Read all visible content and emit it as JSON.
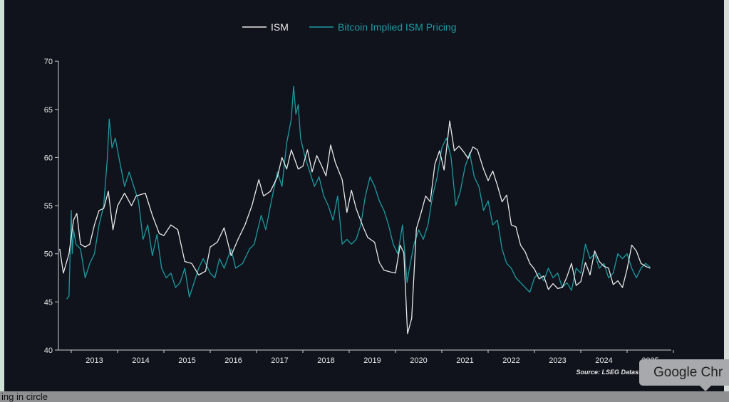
{
  "chart_data": {
    "type": "line",
    "title": "",
    "xlabel": "",
    "ylabel": "",
    "ylim": [
      40,
      70
    ],
    "xlim": [
      2012.7,
      2026.0
    ],
    "yticks": [
      "40",
      "45",
      "50",
      "55",
      "60",
      "65",
      "70"
    ],
    "xticks": [
      "2013",
      "2014",
      "2015",
      "2016",
      "2017",
      "2018",
      "2019",
      "2020",
      "2021",
      "2022",
      "2023",
      "2024",
      "2025"
    ],
    "legend_placement": "top-center",
    "grid": false,
    "source": "Source: LSEG Datastream - Re",
    "series": [
      {
        "name": "ISM",
        "color": "#e8e8e8",
        "points": [
          [
            2012.75,
            50.5
          ],
          [
            2012.83,
            48
          ],
          [
            2012.95,
            50
          ],
          [
            2013.05,
            53.5
          ],
          [
            2013.12,
            54.2
          ],
          [
            2013.2,
            51
          ],
          [
            2013.3,
            50.7
          ],
          [
            2013.4,
            51
          ],
          [
            2013.5,
            53
          ],
          [
            2013.6,
            54.5
          ],
          [
            2013.7,
            54.7
          ],
          [
            2013.8,
            56.5
          ],
          [
            2013.9,
            52.5
          ],
          [
            2014.0,
            55
          ],
          [
            2014.15,
            56.3
          ],
          [
            2014.3,
            55
          ],
          [
            2014.4,
            56
          ],
          [
            2014.6,
            56.3
          ],
          [
            2014.75,
            54
          ],
          [
            2014.9,
            52.1
          ],
          [
            2015.0,
            51.9
          ],
          [
            2015.15,
            53
          ],
          [
            2015.3,
            52.5
          ],
          [
            2015.45,
            49.2
          ],
          [
            2015.6,
            49
          ],
          [
            2015.75,
            47.8
          ],
          [
            2015.9,
            48.2
          ],
          [
            2016.0,
            50.7
          ],
          [
            2016.15,
            51.2
          ],
          [
            2016.3,
            52.7
          ],
          [
            2016.45,
            49.8
          ],
          [
            2016.6,
            51.5
          ],
          [
            2016.75,
            53
          ],
          [
            2016.9,
            55
          ],
          [
            2017.05,
            57.7
          ],
          [
            2017.15,
            56
          ],
          [
            2017.3,
            56.5
          ],
          [
            2017.45,
            58
          ],
          [
            2017.55,
            60
          ],
          [
            2017.65,
            58.8
          ],
          [
            2017.75,
            60.8
          ],
          [
            2017.9,
            58.8
          ],
          [
            2018.0,
            59.1
          ],
          [
            2018.1,
            60.8
          ],
          [
            2018.2,
            58.5
          ],
          [
            2018.3,
            60.2
          ],
          [
            2018.4,
            59.2
          ],
          [
            2018.5,
            58.1
          ],
          [
            2018.6,
            61.3
          ],
          [
            2018.7,
            59.5
          ],
          [
            2018.85,
            57.7
          ],
          [
            2018.95,
            54.3
          ],
          [
            2019.05,
            56.6
          ],
          [
            2019.15,
            54.7
          ],
          [
            2019.3,
            52.8
          ],
          [
            2019.4,
            51.7
          ],
          [
            2019.55,
            51.2
          ],
          [
            2019.65,
            49.1
          ],
          [
            2019.75,
            48.3
          ],
          [
            2019.9,
            48.1
          ],
          [
            2020.0,
            48
          ],
          [
            2020.1,
            50.9
          ],
          [
            2020.18,
            50.1
          ],
          [
            2020.26,
            41.7
          ],
          [
            2020.35,
            43.3
          ],
          [
            2020.45,
            52.6
          ],
          [
            2020.55,
            54.2
          ],
          [
            2020.65,
            56
          ],
          [
            2020.75,
            55.4
          ],
          [
            2020.85,
            59.3
          ],
          [
            2020.95,
            60.7
          ],
          [
            2021.05,
            58.7
          ],
          [
            2021.17,
            63.8
          ],
          [
            2021.27,
            60.7
          ],
          [
            2021.37,
            61.2
          ],
          [
            2021.47,
            60.6
          ],
          [
            2021.57,
            59.9
          ],
          [
            2021.67,
            61.1
          ],
          [
            2021.77,
            60.8
          ],
          [
            2021.9,
            58.8
          ],
          [
            2022.0,
            57.6
          ],
          [
            2022.1,
            58.6
          ],
          [
            2022.2,
            57.1
          ],
          [
            2022.3,
            55.4
          ],
          [
            2022.4,
            56.1
          ],
          [
            2022.5,
            53
          ],
          [
            2022.6,
            52.8
          ],
          [
            2022.7,
            50.9
          ],
          [
            2022.8,
            50.2
          ],
          [
            2022.9,
            49
          ],
          [
            2023.0,
            48.4
          ],
          [
            2023.1,
            47.4
          ],
          [
            2023.2,
            47.7
          ],
          [
            2023.3,
            46.3
          ],
          [
            2023.4,
            46.9
          ],
          [
            2023.5,
            46.4
          ],
          [
            2023.6,
            46.5
          ],
          [
            2023.7,
            47.6
          ],
          [
            2023.8,
            49
          ],
          [
            2023.9,
            46.7
          ],
          [
            2024.0,
            47.1
          ],
          [
            2024.1,
            49.1
          ],
          [
            2024.2,
            47.8
          ],
          [
            2024.3,
            50.3
          ],
          [
            2024.4,
            49.2
          ],
          [
            2024.5,
            48.7
          ],
          [
            2024.6,
            48.5
          ],
          [
            2024.7,
            46.8
          ],
          [
            2024.8,
            47.2
          ],
          [
            2024.9,
            46.5
          ],
          [
            2025.0,
            48.4
          ],
          [
            2025.1,
            50.9
          ],
          [
            2025.2,
            50.3
          ],
          [
            2025.3,
            49
          ],
          [
            2025.4,
            48.7
          ],
          [
            2025.5,
            48.5
          ]
        ]
      },
      {
        "name": "Bitcoin Implied ISM Pricing",
        "color": "#1a9ba0",
        "points": [
          [
            2012.9,
            45.3
          ],
          [
            2012.95,
            45.6
          ],
          [
            2013.0,
            54.5
          ],
          [
            2013.02,
            50
          ],
          [
            2013.05,
            52.5
          ],
          [
            2013.1,
            51
          ],
          [
            2013.2,
            50.5
          ],
          [
            2013.3,
            47.5
          ],
          [
            2013.4,
            49
          ],
          [
            2013.5,
            50
          ],
          [
            2013.6,
            53
          ],
          [
            2013.7,
            55
          ],
          [
            2013.78,
            60
          ],
          [
            2013.82,
            64
          ],
          [
            2013.88,
            61
          ],
          [
            2013.95,
            62
          ],
          [
            2014.05,
            59.5
          ],
          [
            2014.15,
            57
          ],
          [
            2014.25,
            58.5
          ],
          [
            2014.35,
            57
          ],
          [
            2014.45,
            55.5
          ],
          [
            2014.55,
            51.5
          ],
          [
            2014.65,
            53
          ],
          [
            2014.75,
            49.8
          ],
          [
            2014.85,
            52
          ],
          [
            2014.95,
            48.5
          ],
          [
            2015.05,
            47.5
          ],
          [
            2015.15,
            48
          ],
          [
            2015.25,
            46.5
          ],
          [
            2015.35,
            47
          ],
          [
            2015.45,
            48.5
          ],
          [
            2015.55,
            45.5
          ],
          [
            2015.65,
            47
          ],
          [
            2015.75,
            48.5
          ],
          [
            2015.85,
            49.5
          ],
          [
            2016.0,
            48
          ],
          [
            2016.1,
            47.5
          ],
          [
            2016.2,
            49.5
          ],
          [
            2016.3,
            48.5
          ],
          [
            2016.45,
            50.5
          ],
          [
            2016.55,
            48.5
          ],
          [
            2016.7,
            49
          ],
          [
            2016.85,
            50.5
          ],
          [
            2016.95,
            51
          ],
          [
            2017.1,
            54
          ],
          [
            2017.2,
            52.5
          ],
          [
            2017.3,
            55
          ],
          [
            2017.45,
            58.5
          ],
          [
            2017.55,
            57
          ],
          [
            2017.65,
            61.5
          ],
          [
            2017.75,
            64
          ],
          [
            2017.8,
            67.4
          ],
          [
            2017.85,
            64.5
          ],
          [
            2017.9,
            65.5
          ],
          [
            2017.95,
            62
          ],
          [
            2018.05,
            60
          ],
          [
            2018.15,
            58.5
          ],
          [
            2018.25,
            57
          ],
          [
            2018.35,
            58
          ],
          [
            2018.45,
            56
          ],
          [
            2018.55,
            55
          ],
          [
            2018.65,
            53.5
          ],
          [
            2018.75,
            56
          ],
          [
            2018.85,
            51
          ],
          [
            2018.95,
            51.5
          ],
          [
            2019.05,
            51
          ],
          [
            2019.15,
            51.5
          ],
          [
            2019.25,
            53
          ],
          [
            2019.35,
            56
          ],
          [
            2019.45,
            58
          ],
          [
            2019.55,
            57
          ],
          [
            2019.65,
            55.5
          ],
          [
            2019.75,
            54.5
          ],
          [
            2019.85,
            53
          ],
          [
            2019.95,
            51
          ],
          [
            2020.05,
            50
          ],
          [
            2020.15,
            53
          ],
          [
            2020.25,
            47
          ],
          [
            2020.3,
            48.5
          ],
          [
            2020.4,
            51
          ],
          [
            2020.5,
            52.5
          ],
          [
            2020.6,
            51.5
          ],
          [
            2020.7,
            53
          ],
          [
            2020.8,
            56
          ],
          [
            2020.9,
            58
          ],
          [
            2021.0,
            61
          ],
          [
            2021.1,
            62
          ],
          [
            2021.2,
            60
          ],
          [
            2021.3,
            55
          ],
          [
            2021.4,
            56.5
          ],
          [
            2021.5,
            59
          ],
          [
            2021.6,
            60.5
          ],
          [
            2021.7,
            58
          ],
          [
            2021.8,
            57
          ],
          [
            2021.9,
            54.5
          ],
          [
            2022.0,
            55.5
          ],
          [
            2022.1,
            53
          ],
          [
            2022.2,
            53.5
          ],
          [
            2022.3,
            50.5
          ],
          [
            2022.4,
            49
          ],
          [
            2022.5,
            48.5
          ],
          [
            2022.6,
            47.5
          ],
          [
            2022.7,
            47
          ],
          [
            2022.8,
            46.5
          ],
          [
            2022.9,
            46
          ],
          [
            2023.0,
            47.5
          ],
          [
            2023.1,
            48
          ],
          [
            2023.2,
            47.2
          ],
          [
            2023.3,
            48.5
          ],
          [
            2023.4,
            47.5
          ],
          [
            2023.5,
            48
          ],
          [
            2023.6,
            46.5
          ],
          [
            2023.7,
            47
          ],
          [
            2023.8,
            46.2
          ],
          [
            2023.9,
            48.5
          ],
          [
            2024.0,
            48
          ],
          [
            2024.1,
            51
          ],
          [
            2024.2,
            49.5
          ],
          [
            2024.3,
            50
          ],
          [
            2024.4,
            48.5
          ],
          [
            2024.5,
            49
          ],
          [
            2024.6,
            47.5
          ],
          [
            2024.7,
            48
          ],
          [
            2024.8,
            50
          ],
          [
            2024.9,
            49.5
          ],
          [
            2025.0,
            50
          ],
          [
            2025.1,
            48.5
          ],
          [
            2025.2,
            47.5
          ],
          [
            2025.3,
            48.5
          ],
          [
            2025.4,
            49
          ],
          [
            2025.5,
            48.6
          ]
        ]
      }
    ]
  },
  "tooltip": "Google Chr",
  "taskbar_text": "ing in circle"
}
